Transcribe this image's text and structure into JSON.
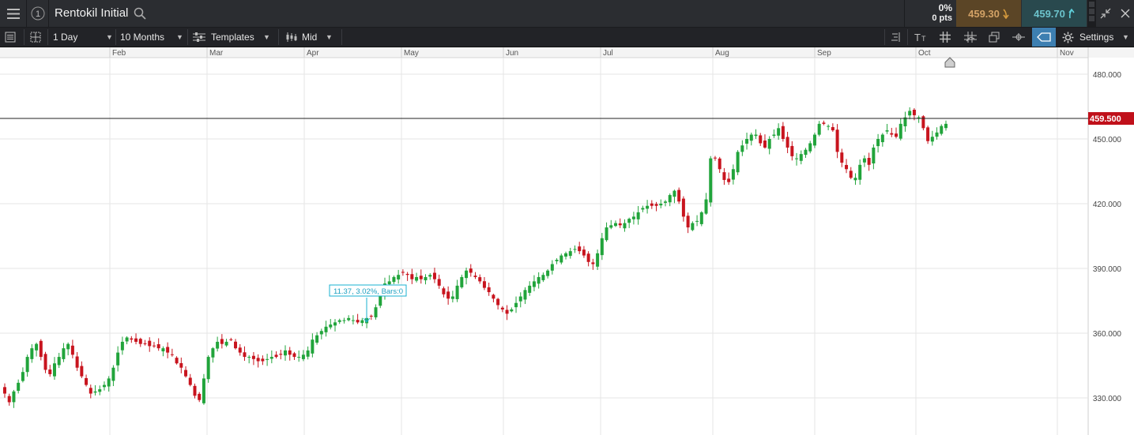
{
  "header": {
    "menu_icon": "hamburger-icon",
    "info_icon": "info-circle-icon",
    "instrument": "Rentokil Initial",
    "search_icon": "search-icon",
    "change_pct": "0%",
    "change_pts": "0 pts",
    "sell_price": "459.30",
    "buy_price": "459.70",
    "sell_arrow_icon": "arrow-down-icon",
    "buy_arrow_icon": "arrow-up-icon",
    "colors": {
      "sell_bg": "#5b4526",
      "buy_bg": "#29494e",
      "sell_text": "#d3a266",
      "buy_text": "#6cc3cc"
    }
  },
  "toolbar": {
    "interval": "1 Day",
    "range": "10 Months",
    "templates": "Templates",
    "price_type": "Mid",
    "settings": "Settings"
  },
  "chart_data": {
    "type": "candlestick",
    "months": [
      "Feb",
      "Mar",
      "Apr",
      "May",
      "Jun",
      "Jul",
      "Aug",
      "Sep",
      "Oct",
      "Nov"
    ],
    "y_ticks": [
      "480.000",
      "450.000",
      "420.000",
      "390.000",
      "360.000",
      "330.000"
    ],
    "ylim": [
      319,
      495
    ],
    "current_price": "459.500",
    "current_value": 459.5,
    "measure_label": "11.37, 3.02%, Bars:0",
    "grid": true,
    "up_color": "#21a43b",
    "down_color": "#c8141e",
    "price_tag_color": "#c0101a",
    "closes": [
      332,
      328,
      333,
      337,
      342,
      349,
      353,
      355,
      349,
      343,
      341,
      346,
      349,
      353,
      355,
      350,
      344,
      340,
      336,
      332,
      333,
      334,
      336,
      339,
      344,
      351,
      356,
      358,
      357,
      356,
      355,
      355,
      354,
      354,
      353,
      353,
      351,
      350,
      346,
      344,
      340,
      336,
      331,
      329,
      339,
      349,
      353,
      356,
      355,
      356,
      357,
      353,
      351,
      349,
      349,
      348,
      347,
      347,
      348,
      349,
      349,
      350,
      352,
      350,
      349,
      349,
      350,
      352,
      357,
      359,
      361,
      363,
      364,
      365,
      366,
      366,
      367,
      366,
      365,
      366,
      367,
      368,
      372,
      378,
      383,
      384,
      386,
      387,
      388,
      387,
      385,
      386,
      385,
      386,
      387,
      385,
      382,
      378,
      376,
      377,
      382,
      386,
      389,
      388,
      386,
      384,
      381,
      379,
      376,
      373,
      371,
      369,
      371,
      374,
      377,
      380,
      382,
      384,
      386,
      387,
      389,
      392,
      394,
      396,
      397,
      398,
      399,
      398,
      396,
      393,
      392,
      397,
      404,
      409,
      410,
      411,
      410,
      411,
      413,
      414,
      416,
      418,
      419,
      419,
      419,
      420,
      421,
      424,
      426,
      421,
      414,
      409,
      411,
      412,
      416,
      422,
      441,
      441,
      436,
      431,
      430,
      436,
      444,
      447,
      450,
      452,
      452,
      448,
      446,
      450,
      452,
      455,
      450,
      446,
      442,
      441,
      443,
      445,
      448,
      452,
      457,
      457,
      456,
      454,
      444,
      439,
      436,
      432,
      432,
      438,
      441,
      438,
      446,
      450,
      452,
      454,
      452,
      451,
      457,
      460,
      463,
      461,
      460,
      455,
      449,
      451,
      453,
      456,
      457
    ]
  }
}
